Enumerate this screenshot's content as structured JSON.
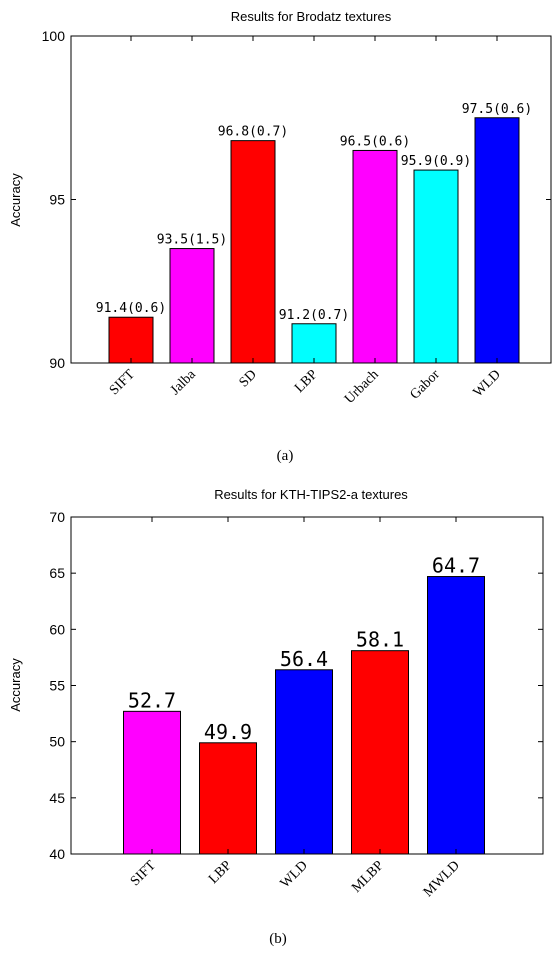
{
  "chart_data": [
    {
      "type": "bar",
      "title": "Results for Brodatz textures",
      "ylabel": "Accuracy",
      "xlabel": "",
      "ylim": [
        90,
        100
      ],
      "yticks": [
        "90",
        "95",
        "100"
      ],
      "categories": [
        "SIFT",
        "Jalba",
        "SD",
        "LBP",
        "Urbach",
        "Gabor",
        "WLD"
      ],
      "values": [
        91.4,
        93.5,
        96.8,
        91.2,
        96.5,
        95.9,
        97.5
      ],
      "data_labels": [
        "91.4(0.6)",
        "93.5(1.5)",
        "96.8(0.7)",
        "91.2(0.7)",
        "96.5(0.6)",
        "95.9(0.9)",
        "97.5(0.6)"
      ],
      "colors": [
        "#ff0000",
        "#ff00ff",
        "#ff0000",
        "#00ffff",
        "#ff00ff",
        "#00ffff",
        "#0000ff"
      ],
      "caption": "(a)",
      "grid": false
    },
    {
      "type": "bar",
      "title": "Results for KTH-TIPS2-a textures",
      "ylabel": "Accuracy",
      "xlabel": "",
      "ylim": [
        40,
        70
      ],
      "yticks": [
        "40",
        "45",
        "50",
        "55",
        "60",
        "65",
        "70"
      ],
      "categories": [
        "SIFT",
        "LBP",
        "WLD",
        "MLBP",
        "MWLD"
      ],
      "values": [
        52.7,
        49.9,
        56.4,
        58.1,
        64.7
      ],
      "data_labels": [
        "52.7",
        "49.9",
        "56.4",
        "58.1",
        "64.7"
      ],
      "colors": [
        "#ff00ff",
        "#ff0000",
        "#0000ff",
        "#ff0000",
        "#0000ff"
      ],
      "caption": "(b)",
      "grid": false
    }
  ]
}
